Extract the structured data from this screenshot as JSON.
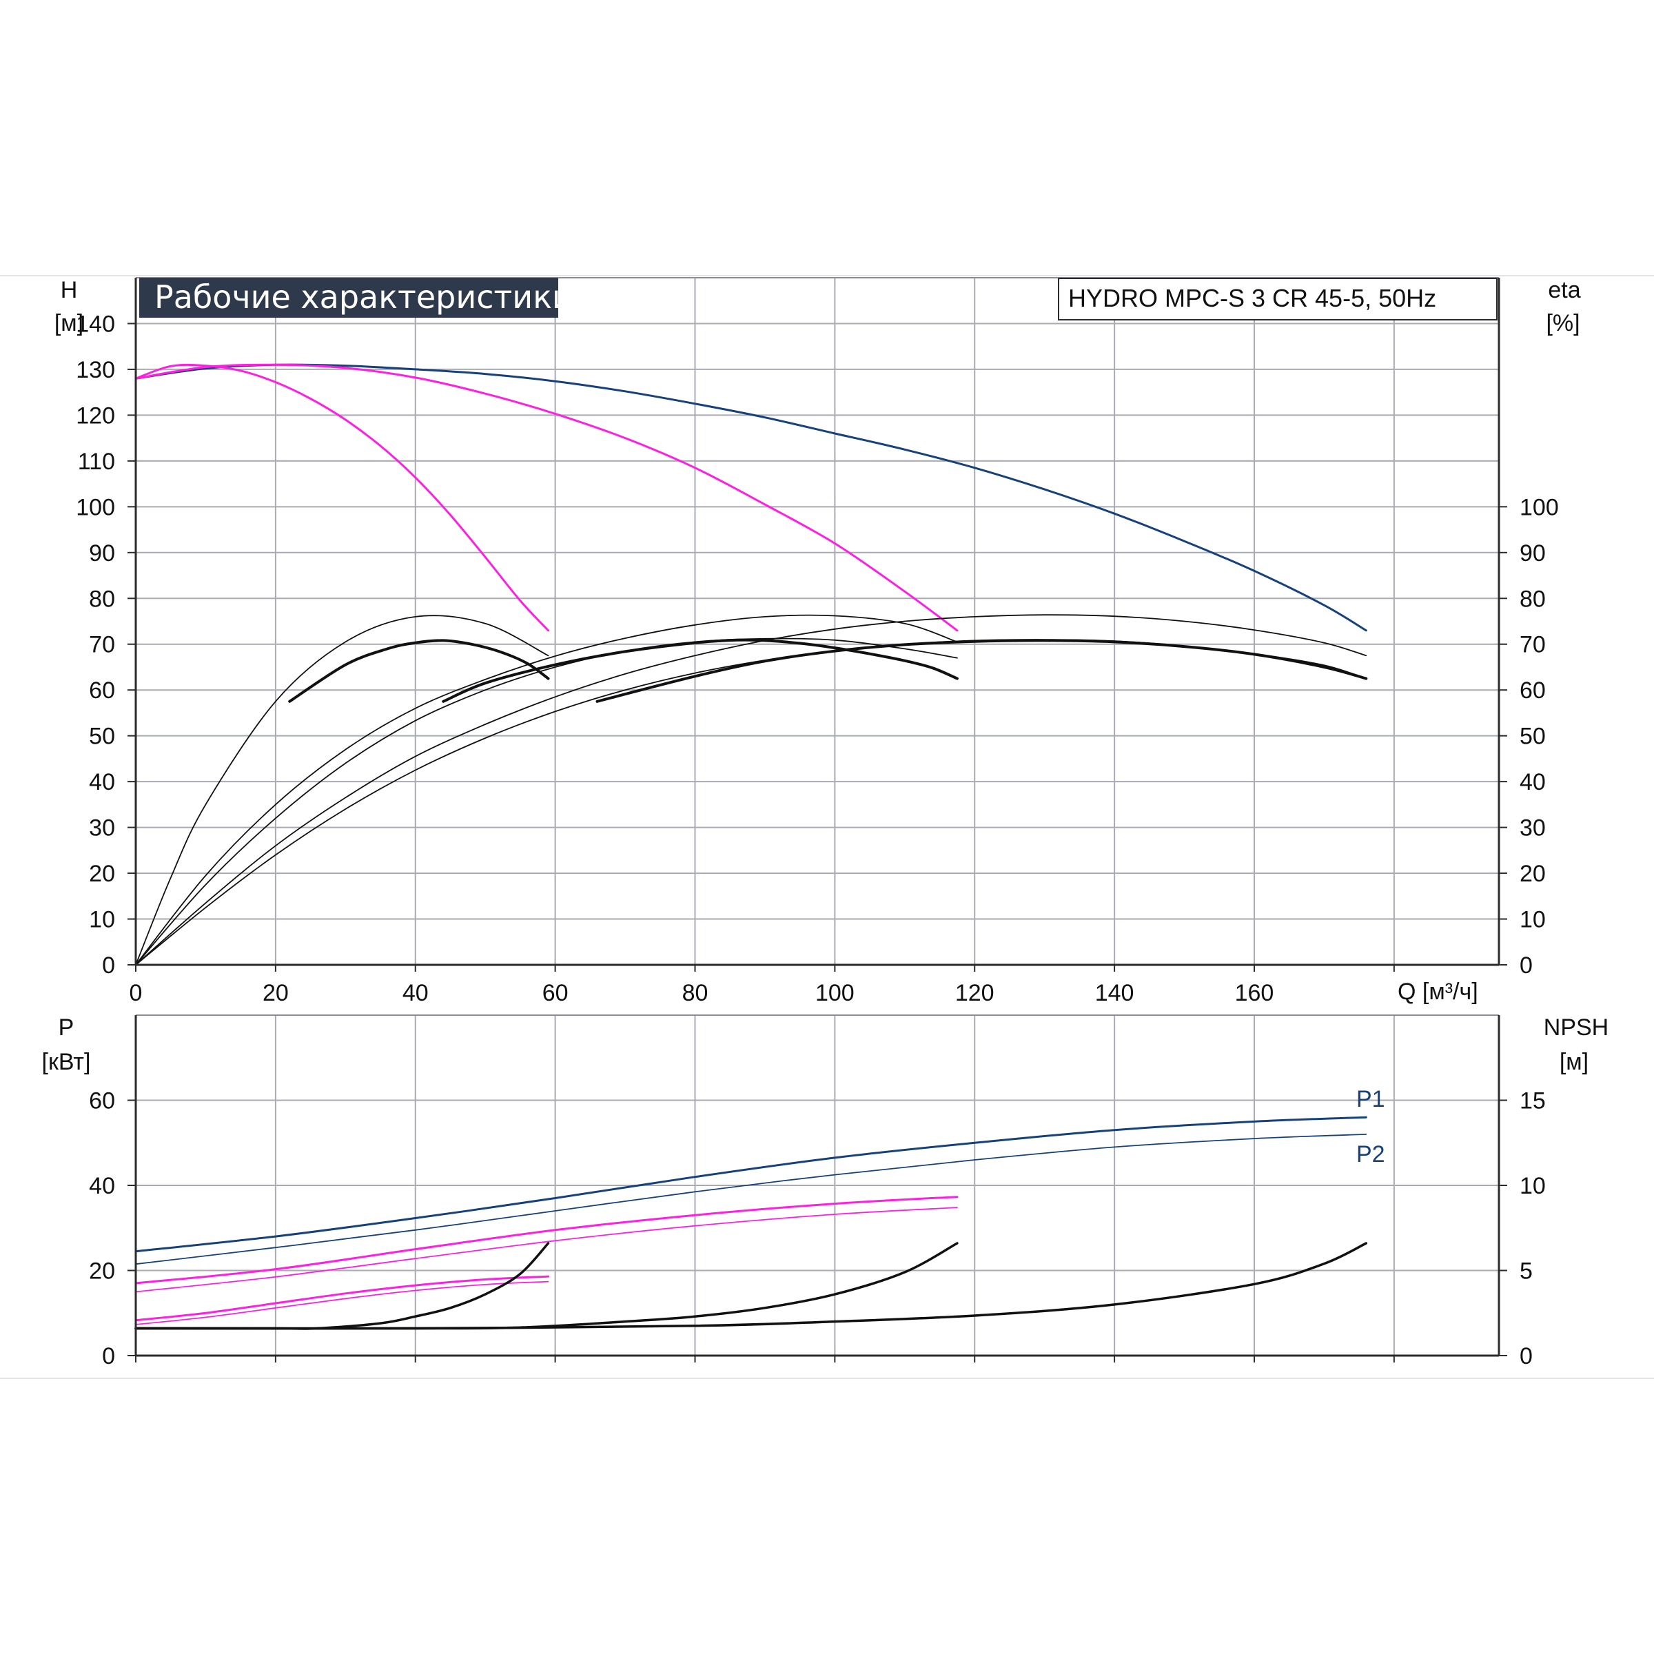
{
  "title": "Рабочие характеристики",
  "model": "HYDRO MPC-S 3 CR 45-5, 50Hz",
  "colors": {
    "background": "#ffffff",
    "grid": "#a9aab3",
    "axis": "#2b2b2b",
    "title_bg": "#2e3a4c",
    "pump_curve": "#16417a",
    "partial_curve": "#ff1fe0",
    "efficiency": "#111111",
    "npsh": "#111111",
    "p1_label": "#16417a"
  },
  "chart_data": [
    {
      "type": "line",
      "panel": "head_efficiency",
      "x_unit": "Q [м³/ч]",
      "xlim": [
        0,
        195
      ],
      "x_ticks": [
        0,
        20,
        40,
        60,
        80,
        100,
        120,
        140,
        160
      ],
      "y_left": {
        "label": "H",
        "unit": "[м]",
        "lim": [
          0,
          150
        ],
        "ticks": [
          0,
          10,
          20,
          30,
          40,
          50,
          60,
          70,
          80,
          90,
          100,
          110,
          120,
          130,
          140
        ]
      },
      "y_right": {
        "label": "eta",
        "unit": "[%]",
        "lim": [
          0,
          150
        ],
        "ticks": [
          0,
          10,
          20,
          30,
          40,
          50,
          60,
          70,
          80,
          90,
          100
        ]
      },
      "grid": true,
      "series": [
        {
          "role": "head",
          "color": "pump_curve",
          "width": 3,
          "x": [
            0,
            10,
            20,
            30,
            40,
            50,
            60,
            70,
            80,
            90,
            100,
            110,
            120,
            130,
            140,
            150,
            160,
            170,
            176
          ],
          "y": [
            128,
            130.2,
            131,
            130.8,
            130,
            129,
            127.4,
            125.2,
            122.5,
            119.5,
            116,
            112.5,
            108.5,
            103.8,
            98.5,
            92.5,
            86,
            78.5,
            73
          ]
        },
        {
          "role": "head",
          "color": "partial_curve",
          "width": 3,
          "x": [
            0,
            10,
            20,
            30,
            40,
            50,
            60,
            70,
            80,
            90,
            100,
            110,
            117.5
          ],
          "y": [
            128,
            130.5,
            131,
            130.3,
            128.2,
            124.7,
            120.3,
            115,
            108.5,
            100.5,
            92,
            81.5,
            73
          ]
        },
        {
          "role": "head",
          "color": "partial_curve",
          "width": 3,
          "x": [
            0,
            5,
            10,
            15,
            20,
            25,
            30,
            35,
            40,
            45,
            50,
            55,
            59
          ],
          "y": [
            128,
            130.7,
            130.8,
            129.7,
            127.2,
            123.6,
            119,
            113.3,
            106.4,
            98.2,
            89,
            79.5,
            73
          ]
        },
        {
          "role": "efficiency",
          "color": "efficiency",
          "width": 1.8,
          "x": [
            0,
            5,
            10,
            20,
            30,
            40,
            50,
            59
          ],
          "y": [
            0,
            19,
            35,
            57.5,
            70.5,
            76,
            74.5,
            67.5
          ]
        },
        {
          "role": "efficiency",
          "color": "efficiency",
          "width": 4,
          "x": [
            22,
            30,
            36,
            40,
            44,
            48,
            52,
            56,
            59
          ],
          "y": [
            57.5,
            65.5,
            69,
            70.3,
            70.8,
            70,
            68.4,
            65.8,
            62.5
          ]
        },
        {
          "role": "efficiency",
          "color": "efficiency",
          "width": 1.8,
          "x": [
            0,
            10,
            20,
            30,
            40,
            50,
            60,
            70,
            80,
            90,
            100,
            110,
            117.5
          ],
          "y": [
            0,
            19.5,
            35,
            47,
            56,
            62.3,
            67.4,
            71.3,
            74.2,
            76,
            76.2,
            74.5,
            70.5
          ]
        },
        {
          "role": "efficiency",
          "color": "efficiency",
          "width": 1.8,
          "x": [
            0,
            10,
            20,
            30,
            40,
            50,
            60,
            70,
            80,
            90,
            100,
            110,
            117.5
          ],
          "y": [
            0,
            17.5,
            32,
            44,
            53.3,
            60,
            65,
            68.5,
            70.5,
            71.2,
            70.9,
            69,
            67
          ]
        },
        {
          "role": "efficiency",
          "color": "efficiency",
          "width": 4,
          "x": [
            44,
            50,
            60,
            70,
            80,
            86,
            90,
            95,
            100,
            105,
            110,
            114,
            117.5
          ],
          "y": [
            57.5,
            61.5,
            65.5,
            68.4,
            70.3,
            70.9,
            70.8,
            70.2,
            69.2,
            67.9,
            66.4,
            64.8,
            62.5
          ]
        },
        {
          "role": "efficiency",
          "color": "efficiency",
          "width": 1.8,
          "x": [
            0,
            10,
            20,
            30,
            40,
            50,
            60,
            70,
            80,
            90,
            100,
            110,
            120,
            130,
            140,
            150,
            160,
            170,
            176
          ],
          "y": [
            0,
            13.5,
            26,
            36.5,
            45.5,
            52.5,
            58.5,
            63.5,
            67.5,
            70.8,
            73.3,
            75,
            76,
            76.4,
            76.1,
            75,
            73.1,
            70.3,
            67.5
          ]
        },
        {
          "role": "efficiency",
          "color": "efficiency",
          "width": 4,
          "x": [
            66,
            80,
            90,
            100,
            110,
            120,
            130,
            140,
            150,
            160,
            170,
            176
          ],
          "y": [
            57.5,
            63,
            66.3,
            68.5,
            69.9,
            70.6,
            70.8,
            70.5,
            69.5,
            67.8,
            65,
            62.5
          ]
        },
        {
          "role": "efficiency",
          "color": "efficiency",
          "width": 1.8,
          "x": [
            0,
            10,
            20,
            30,
            40,
            50,
            60,
            70,
            80,
            90,
            100,
            110,
            120,
            130,
            140,
            150,
            160,
            170,
            176
          ],
          "y": [
            0,
            12.5,
            24,
            34,
            42.5,
            49.5,
            55.3,
            60,
            63.7,
            66.5,
            68.6,
            70,
            70.8,
            71,
            70.7,
            69.6,
            67.9,
            65.4,
            62.5
          ]
        }
      ]
    },
    {
      "type": "line",
      "panel": "power_npsh",
      "xlim": [
        0,
        195
      ],
      "y_left": {
        "label": "P",
        "unit": "[кВт]",
        "lim": [
          0,
          80
        ],
        "ticks": [
          0,
          20,
          40,
          60
        ]
      },
      "y_right": {
        "label": "NPSH",
        "unit": "[м]",
        "lim": [
          0,
          20
        ],
        "ticks": [
          0,
          5,
          10,
          15
        ]
      },
      "grid": true,
      "series": [
        {
          "name": "P1",
          "role": "power",
          "color": "pump_curve",
          "width": 3,
          "x": [
            0,
            20,
            40,
            60,
            80,
            100,
            120,
            140,
            160,
            176
          ],
          "y": [
            24.5,
            28,
            32.3,
            37,
            42,
            46.5,
            50,
            53,
            55,
            56
          ]
        },
        {
          "name": "P2",
          "role": "power",
          "color": "pump_curve",
          "width": 1.8,
          "x": [
            0,
            20,
            40,
            60,
            80,
            100,
            120,
            140,
            160,
            176
          ],
          "y": [
            21.5,
            25.4,
            29.5,
            34,
            38.5,
            42.5,
            46,
            49,
            51,
            52
          ]
        },
        {
          "role": "power",
          "color": "partial_curve",
          "width": 3,
          "x": [
            0,
            20,
            40,
            60,
            80,
            100,
            117.5
          ],
          "y": [
            17,
            20.3,
            25,
            29.5,
            33,
            35.7,
            37.3
          ]
        },
        {
          "role": "power",
          "color": "partial_curve",
          "width": 1.8,
          "x": [
            0,
            20,
            40,
            60,
            80,
            100,
            117.5
          ],
          "y": [
            15,
            18.5,
            22.8,
            27,
            30.5,
            33.2,
            34.8
          ]
        },
        {
          "role": "power",
          "color": "partial_curve",
          "width": 3,
          "x": [
            0,
            10,
            20,
            30,
            40,
            50,
            59
          ],
          "y": [
            8.3,
            10,
            12.3,
            14.6,
            16.5,
            17.9,
            18.6
          ]
        },
        {
          "role": "power",
          "color": "partial_curve",
          "width": 1.8,
          "x": [
            0,
            10,
            20,
            30,
            40,
            50,
            59
          ],
          "y": [
            7.3,
            9,
            11.2,
            13.4,
            15.3,
            16.7,
            17.4
          ]
        },
        {
          "role": "npsh",
          "color": "npsh",
          "width": 3.5,
          "x": [
            0,
            10,
            20,
            26,
            35,
            40,
            45,
            50,
            55,
            59
          ],
          "y": [
            1.6,
            1.6,
            1.6,
            1.6,
            1.9,
            2.3,
            2.8,
            3.6,
            4.8,
            6.6
          ]
        },
        {
          "role": "npsh",
          "color": "npsh",
          "width": 3.5,
          "x": [
            0,
            20,
            40,
            55,
            70,
            80,
            90,
            100,
            110,
            117.5
          ],
          "y": [
            1.6,
            1.6,
            1.6,
            1.65,
            2,
            2.3,
            2.8,
            3.6,
            4.9,
            6.6
          ]
        },
        {
          "role": "npsh",
          "color": "npsh",
          "width": 3.5,
          "x": [
            0,
            40,
            80,
            100,
            120,
            140,
            160,
            170,
            176
          ],
          "y": [
            1.6,
            1.6,
            1.75,
            2,
            2.35,
            3,
            4.2,
            5.4,
            6.6
          ]
        }
      ]
    }
  ]
}
